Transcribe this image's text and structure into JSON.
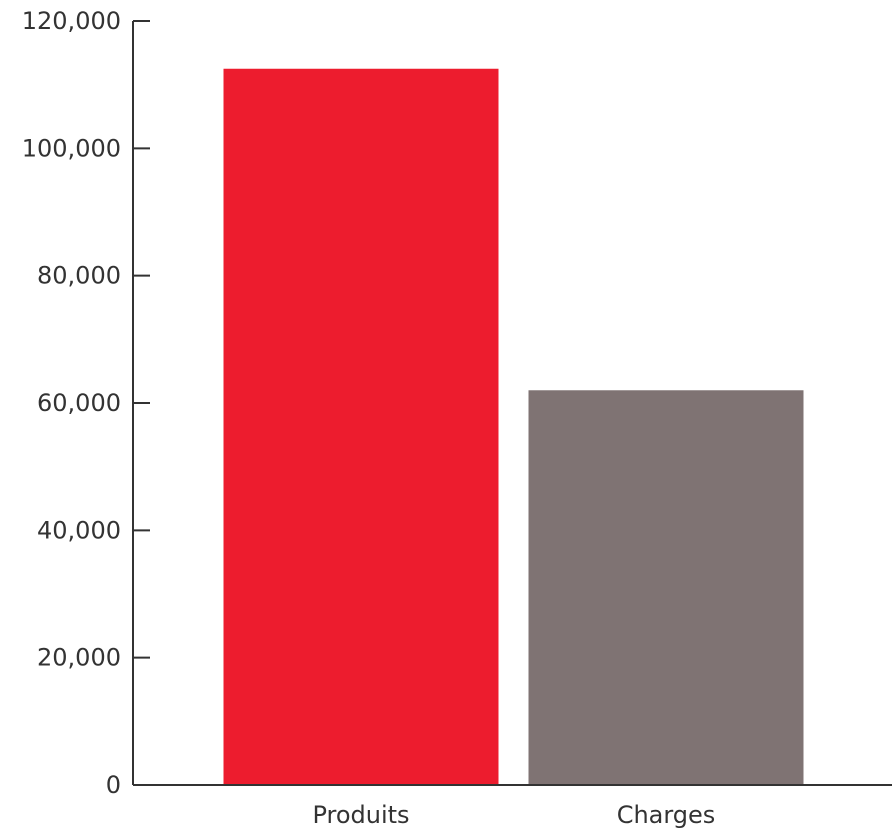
{
  "chart_data": {
    "type": "bar",
    "title": "",
    "xlabel": "",
    "ylabel": "",
    "categories": [
      "Produits",
      "Charges"
    ],
    "values": [
      112500,
      62000
    ],
    "colors": [
      "#ED1C2E",
      "#7F7373"
    ],
    "ylim": [
      0,
      120000
    ],
    "yticks": [
      0,
      20000,
      40000,
      60000,
      80000,
      100000,
      120000
    ],
    "ytick_labels": [
      "0",
      "20,000",
      "40,000",
      "60,000",
      "80,000",
      "100,000",
      "120,000"
    ],
    "grid": false,
    "legend": "none"
  }
}
